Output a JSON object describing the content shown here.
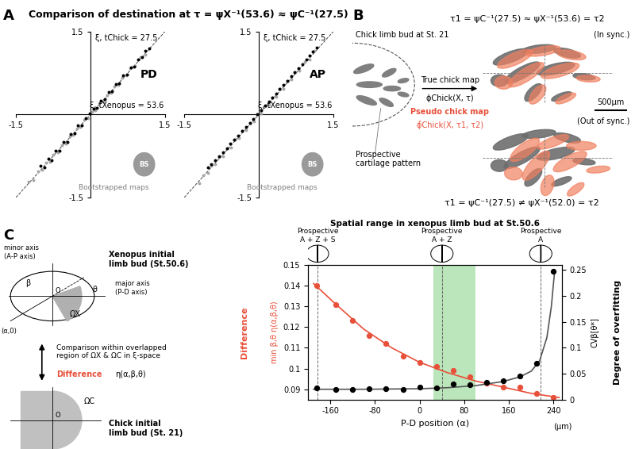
{
  "panel_labels": [
    "A",
    "B",
    "C"
  ],
  "panel_A": {
    "title": "Comparison of destination at τ = ψX⁻¹(53.6) ≈ ψC⁻¹(27.5)",
    "bootstrap_label": "Bootstrapped maps",
    "bootstrap_icon": "BS"
  },
  "chart_data": [
    {
      "type": "scatter",
      "title": "PD",
      "xlabel": "ξ, tXenopus = 53.6",
      "ylabel": "ξ, tChick = 27.5",
      "xlim": [
        -1.5,
        1.5
      ],
      "ylim": [
        -1.5,
        1.5
      ],
      "xticks": [
        -1.5,
        1.5
      ],
      "yticks": [
        -1.5,
        1.5
      ],
      "series": [
        {
          "color": "#a6a6a6",
          "marker": "o",
          "x": [
            -1.25,
            -1.15,
            -1.05,
            -0.98,
            -0.9,
            -0.82,
            -0.75,
            -0.66,
            -0.58,
            -0.5,
            -0.42,
            -0.35,
            -0.27,
            -0.2,
            -0.12,
            -0.05,
            0.03,
            0.1,
            0.18,
            0.25,
            0.33,
            0.41,
            0.48,
            0.56,
            0.64,
            0.72,
            0.8,
            0.9,
            1.0,
            1.1
          ],
          "values": [
            -1.22,
            -1.18,
            -1.02,
            -1.0,
            -0.87,
            -0.85,
            -0.72,
            -0.69,
            -0.55,
            -0.53,
            -0.4,
            -0.37,
            -0.25,
            -0.22,
            -0.1,
            -0.07,
            0.05,
            0.08,
            0.2,
            0.23,
            0.35,
            0.39,
            0.5,
            0.54,
            0.66,
            0.7,
            0.83,
            0.88,
            1.03,
            1.08
          ]
        },
        {
          "color": "#000000",
          "marker": "o",
          "x": [
            -1.0,
            -0.92,
            -0.85,
            -0.78,
            -0.7,
            -0.62,
            -0.55,
            -0.47,
            -0.4,
            -0.32,
            -0.25,
            -0.17,
            -0.1,
            -0.02,
            0.06,
            0.13,
            0.21,
            0.28,
            0.36,
            0.43,
            0.51,
            0.58,
            0.66,
            0.73,
            0.81,
            0.88,
            0.96,
            1.03,
            1.1,
            1.18
          ],
          "values": [
            -0.93,
            -0.95,
            -0.8,
            -0.82,
            -0.66,
            -0.65,
            -0.5,
            -0.5,
            -0.36,
            -0.34,
            -0.2,
            -0.2,
            -0.06,
            0.02,
            0.1,
            0.12,
            0.25,
            0.27,
            0.4,
            0.42,
            0.55,
            0.56,
            0.7,
            0.72,
            0.85,
            0.86,
            1.0,
            1.03,
            1.15,
            1.2
          ]
        }
      ]
    },
    {
      "type": "scatter",
      "title": "AP",
      "xlabel": "ξ, tXenopus = 53.6",
      "ylabel": "ξ, tChick = 27.5",
      "xlim": [
        -1.5,
        1.5
      ],
      "ylim": [
        -1.5,
        1.5
      ],
      "xticks": [
        -1.5,
        1.5
      ],
      "yticks": [
        -1.5,
        1.5
      ],
      "series": [
        {
          "color": "#a6a6a6",
          "marker": "o",
          "x": [
            -1.2,
            -1.12,
            -1.02,
            -0.95,
            -0.88,
            -0.8,
            -0.72,
            -0.64,
            -0.56,
            -0.48,
            -0.4,
            -0.33,
            -0.25,
            -0.18,
            -0.1,
            -0.03,
            0.05,
            0.12,
            0.2,
            0.27,
            0.35,
            0.43,
            0.5,
            0.58,
            0.66,
            0.74,
            0.82,
            0.92,
            1.02,
            1.12
          ],
          "values": [
            -1.24,
            -1.1,
            -1.06,
            -0.92,
            -0.9,
            -0.77,
            -0.75,
            -0.61,
            -0.59,
            -0.45,
            -0.43,
            -0.3,
            -0.28,
            -0.15,
            -0.13,
            0.0,
            0.02,
            0.15,
            0.17,
            0.3,
            0.32,
            0.46,
            0.47,
            0.61,
            0.63,
            0.77,
            0.79,
            0.95,
            0.99,
            1.15
          ]
        },
        {
          "color": "#000000",
          "marker": "o",
          "x": [
            -1.02,
            -0.95,
            -0.87,
            -0.8,
            -0.72,
            -0.64,
            -0.57,
            -0.49,
            -0.41,
            -0.34,
            -0.26,
            -0.18,
            -0.11,
            -0.03,
            0.05,
            0.12,
            0.2,
            0.27,
            0.35,
            0.42,
            0.5,
            0.57,
            0.65,
            0.72,
            0.8,
            0.87,
            0.95,
            1.02,
            1.09,
            1.16
          ],
          "values": [
            -0.96,
            -0.9,
            -0.83,
            -0.76,
            -0.68,
            -0.61,
            -0.53,
            -0.46,
            -0.38,
            -0.3,
            -0.23,
            -0.15,
            -0.08,
            0.0,
            0.08,
            0.16,
            0.23,
            0.31,
            0.38,
            0.46,
            0.53,
            0.61,
            0.69,
            0.76,
            0.84,
            0.91,
            0.99,
            1.06,
            1.14,
            1.21
          ]
        }
      ]
    },
    {
      "type": "scatter",
      "title": "Spatial range in xenopus limb bud at St.50.6",
      "xlabel": "P-D position (α)",
      "xunit": "(μm)",
      "ylabel": "Difference",
      "ylabel_sub": "min β,θ η(α,β,θ)",
      "y2label": "Degree of overfitting",
      "y2label_sub": "CVβ[θ*]",
      "xlim": [
        -200,
        255
      ],
      "xticks": [
        -160,
        -80,
        0,
        80,
        160,
        240
      ],
      "ylim": [
        0.085,
        0.15
      ],
      "yticks": [
        0.09,
        0.1,
        0.11,
        0.12,
        0.13,
        0.14,
        0.15
      ],
      "y2lim": [
        0,
        0.26
      ],
      "y2ticks": [
        0,
        0.05,
        0.1,
        0.15,
        0.2,
        0.25
      ],
      "reference_lines": [
        -183,
        40,
        217
      ],
      "highlight_range": [
        25,
        100
      ],
      "range_labels": [
        "Prospective\nA + Z + S",
        "Prospective\nA + Z",
        "Prospective\nA"
      ],
      "series": [
        {
          "type": "scatter",
          "color": "#e8503a",
          "marker": "o",
          "x": [
            -185,
            -150,
            -120,
            -90,
            -60,
            -30,
            0,
            30,
            60,
            90,
            120,
            150,
            180,
            210,
            240
          ],
          "values": [
            0.14,
            0.131,
            0.123,
            0.116,
            0.112,
            0.106,
            0.103,
            0.101,
            0.099,
            0.096,
            0.093,
            0.091,
            0.091,
            0.088,
            0.086
          ]
        },
        {
          "type": "line",
          "color": "#e8503a",
          "line_style": "solid",
          "x": [
            -190,
            -150,
            -100,
            -50,
            0,
            50,
            100,
            150,
            200,
            250
          ],
          "values": [
            0.141,
            0.131,
            0.119,
            0.11,
            0.103,
            0.098,
            0.094,
            0.091,
            0.088,
            0.086
          ]
        },
        {
          "type": "scatter",
          "color": "#000000",
          "marker": "o",
          "axis": "y2",
          "x": [
            -185,
            -150,
            -120,
            -90,
            -60,
            -30,
            0,
            30,
            60,
            90,
            120,
            150,
            180,
            210,
            240
          ],
          "values": [
            0.022,
            0.02,
            0.02,
            0.021,
            0.021,
            0.02,
            0.024,
            0.022,
            0.03,
            0.028,
            0.033,
            0.036,
            0.046,
            0.07,
            0.248
          ]
        },
        {
          "type": "line",
          "color": "#555555",
          "line_style": "solid",
          "axis": "y2",
          "x": [
            -190,
            -100,
            0,
            50,
            100,
            150,
            180,
            200,
            215,
            228,
            236,
            242
          ],
          "values": [
            0.02,
            0.02,
            0.021,
            0.023,
            0.027,
            0.035,
            0.044,
            0.055,
            0.075,
            0.12,
            0.18,
            0.25
          ]
        }
      ]
    }
  ],
  "panel_B": {
    "top_formula": "τ1 = ψC⁻¹(27.5) ≈ ψX⁻¹(53.6) = τ2",
    "bottom_formula": "τ1 = ψC⁻¹(27.5) ≠ ψX⁻¹(52.0) = τ2",
    "in_sync": "(In sync.)",
    "out_sync": "(Out of sync.)",
    "chick_label": "Chick limb bud at St. 21",
    "cartilage_label": "Prospective\ncartilage pattern",
    "true_map": "True chick map",
    "true_map_symbol": "ϕChick(X, τ)",
    "pseudo_map": "Pseudo chick map",
    "pseudo_map_symbol": "ϕ̂Chick(X, τ1, τ2)",
    "scale_bar": "500μm"
  },
  "panel_C_diagram": {
    "xenopus_label": "Xenopus initial\nlimb bud (St.50.6)",
    "minor_axis": "minor axis\n(A-P axis)",
    "major_axis": "major axis\n(P-D axis)",
    "beta": "β",
    "theta": "θ",
    "origin": "O",
    "omega_x": "ΩX",
    "alpha_point": "(α,0)",
    "comparison": "Comparison within overlapped\nregion of ΩX & ΩC in ξ-space",
    "difference": "Difference",
    "eta": "η(α,β,θ)",
    "chick_label": "Chick initial\nlimb bud (St. 21)",
    "omega_c": "ΩC"
  }
}
